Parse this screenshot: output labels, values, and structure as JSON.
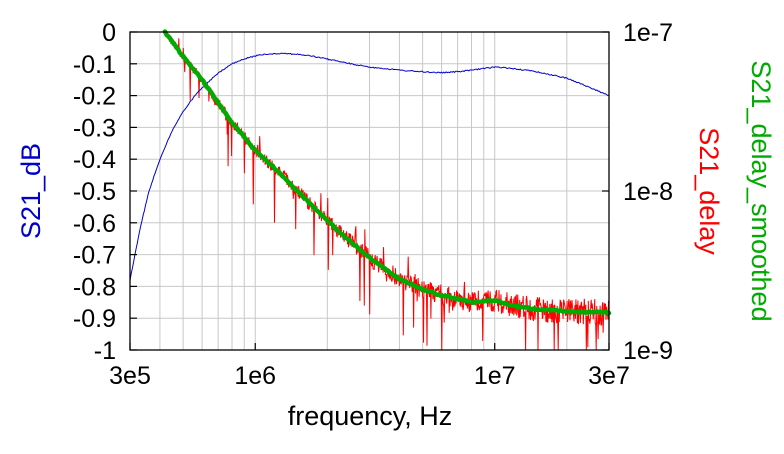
{
  "chart_data": {
    "type": "line",
    "xlabel": "frequency, Hz",
    "ylabel_left": "S21_dB",
    "ylabel_right": [
      "S21_delay_smoothed",
      "S21_delay"
    ],
    "x_scale": "log",
    "xlim": [
      300000,
      30000000
    ],
    "ylim_left": [
      -1,
      0
    ],
    "ylim_right": [
      1e-09,
      1e-07
    ],
    "y_right_scale": "log",
    "grid": true,
    "legend": "none",
    "x_ticks": [
      {
        "value": 300000,
        "label": "3e5"
      },
      {
        "value": 1000000,
        "label": "1e6"
      },
      {
        "value": 10000000,
        "label": "1e7"
      },
      {
        "value": 30000000,
        "label": "3e7"
      }
    ],
    "y_left_ticks": [
      {
        "value": 0,
        "label": "0"
      },
      {
        "value": -0.1,
        "label": "-0.1"
      },
      {
        "value": -0.2,
        "label": "-0.2"
      },
      {
        "value": -0.3,
        "label": "-0.3"
      },
      {
        "value": -0.4,
        "label": "-0.4"
      },
      {
        "value": -0.5,
        "label": "-0.5"
      },
      {
        "value": -0.6,
        "label": "-0.6"
      },
      {
        "value": -0.7,
        "label": "-0.7"
      },
      {
        "value": -0.8,
        "label": "-0.8"
      },
      {
        "value": -0.9,
        "label": "-0.9"
      },
      {
        "value": -1,
        "label": "-1"
      }
    ],
    "y_right_ticks": [
      {
        "value": 1e-07,
        "label": "1e-7"
      },
      {
        "value": 1e-08,
        "label": "1e-8"
      },
      {
        "value": 1e-09,
        "label": "1e-9"
      }
    ],
    "series": [
      {
        "name": "S21_dB",
        "axis": "left",
        "color": "#0000cc",
        "x": [
          300000,
          330000,
          360000,
          400000,
          450000,
          500000,
          560000,
          630000,
          700000,
          800000,
          900000,
          1000000,
          1100000,
          1200000,
          1300000,
          1500000,
          1700000,
          2000000,
          2500000,
          3000000,
          4000000,
          5000000,
          6000000,
          7000000,
          8000000,
          9000000,
          10000000,
          12000000,
          15000000,
          20000000,
          25000000,
          30000000
        ],
        "y": [
          -0.78,
          -0.62,
          -0.5,
          -0.4,
          -0.31,
          -0.25,
          -0.2,
          -0.16,
          -0.13,
          -0.1,
          -0.085,
          -0.075,
          -0.07,
          -0.068,
          -0.067,
          -0.07,
          -0.075,
          -0.085,
          -0.1,
          -0.11,
          -0.12,
          -0.125,
          -0.128,
          -0.125,
          -0.12,
          -0.115,
          -0.11,
          -0.115,
          -0.125,
          -0.145,
          -0.175,
          -0.2
        ]
      },
      {
        "name": "S21_delay",
        "axis": "right",
        "color": "#ff0000",
        "x": [
          420000,
          500000,
          600000,
          700000,
          800000,
          1000000,
          1200000,
          1500000,
          2000000,
          2500000,
          3000000,
          4000000,
          5000000,
          6000000,
          7000000,
          8000000,
          10000000,
          12000000,
          15000000,
          20000000,
          30000000
        ],
        "y": [
          1e-07,
          7e-08,
          5e-08,
          3.6e-08,
          2.7e-08,
          1.8e-08,
          1.4e-08,
          1e-08,
          6.5e-09,
          4.8e-09,
          3.8e-09,
          2.8e-09,
          2.4e-09,
          2.2e-09,
          2.1e-09,
          2e-09,
          2.05e-09,
          1.9e-09,
          1.8e-09,
          1.75e-09,
          1.72e-09
        ],
        "noise": "high-frequency jitter with deep downward spikes"
      },
      {
        "name": "S21_delay_smoothed",
        "axis": "right",
        "color": "#00aa00",
        "x": [
          420000,
          500000,
          600000,
          700000,
          800000,
          1000000,
          1200000,
          1500000,
          2000000,
          2500000,
          3000000,
          4000000,
          5000000,
          6000000,
          7000000,
          8000000,
          10000000,
          12000000,
          15000000,
          20000000,
          30000000
        ],
        "y": [
          1e-07,
          7e-08,
          5e-08,
          3.6e-08,
          2.7e-08,
          1.8e-08,
          1.4e-08,
          1e-08,
          6.5e-09,
          4.8e-09,
          3.8e-09,
          2.8e-09,
          2.4e-09,
          2.2e-09,
          2.1e-09,
          2e-09,
          2.05e-09,
          1.9e-09,
          1.8e-09,
          1.75e-09,
          1.72e-09
        ]
      }
    ]
  }
}
